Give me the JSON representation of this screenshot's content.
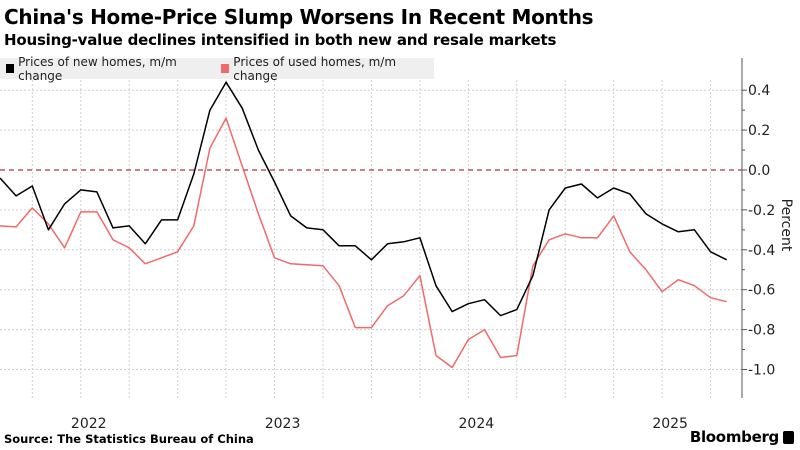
{
  "chart_data": {
    "type": "line",
    "title": "China's Home-Price Slump Worsens In Recent Months",
    "subtitle": "Housing-value declines intensified in both new and resale markets",
    "ylabel": "Percent",
    "ylim": [
      -1.15,
      0.58
    ],
    "yticks": [
      0.4,
      0.2,
      0.0,
      -0.2,
      -0.4,
      -0.6,
      -0.8,
      -1.0
    ],
    "ytick_labels": [
      "0.4",
      "0.2",
      "0.0",
      "-0.2",
      "-0.4",
      "-0.6",
      "-0.8",
      "-1.0"
    ],
    "xticks": [
      "2022",
      "2023",
      "2024",
      "2025"
    ],
    "x_start": "2021-08",
    "x_end": "2025-05",
    "grid": true,
    "reference_line": {
      "value": 0.0,
      "style": "dashed",
      "color": "#b03040"
    },
    "legend_placement": "top-left",
    "x": [
      "2021-08",
      "2021-09",
      "2021-10",
      "2021-11",
      "2021-12",
      "2022-01",
      "2022-02",
      "2022-03",
      "2022-04",
      "2022-05",
      "2022-06",
      "2022-07",
      "2022-08",
      "2022-09",
      "2022-10",
      "2022-11",
      "2022-12",
      "2023-01",
      "2023-02",
      "2023-03",
      "2023-04",
      "2023-05",
      "2023-06",
      "2023-07",
      "2023-08",
      "2023-09",
      "2023-10",
      "2023-11",
      "2023-12",
      "2024-01",
      "2024-02",
      "2024-03",
      "2024-04",
      "2024-05",
      "2024-06",
      "2024-07",
      "2024-08",
      "2024-09",
      "2024-10",
      "2024-11",
      "2024-12",
      "2025-01",
      "2025-02",
      "2025-03",
      "2025-04",
      "2025-05"
    ],
    "series": [
      {
        "name": "Prices of new homes, m/m change",
        "color": "#000000",
        "values": [
          -0.04,
          -0.13,
          -0.08,
          -0.3,
          -0.17,
          -0.1,
          -0.11,
          -0.29,
          -0.28,
          -0.37,
          -0.25,
          -0.25,
          -0.02,
          0.3,
          0.44,
          0.31,
          0.1,
          -0.06,
          -0.23,
          -0.29,
          -0.3,
          -0.38,
          -0.38,
          -0.45,
          -0.37,
          -0.36,
          -0.34,
          -0.58,
          -0.71,
          -0.67,
          -0.65,
          -0.73,
          -0.7,
          -0.53,
          -0.2,
          -0.09,
          -0.07,
          -0.14,
          -0.09,
          -0.12,
          -0.22,
          -0.27,
          -0.31,
          -0.3,
          -0.41,
          -0.45
        ]
      },
      {
        "name": "Prices of used homes, m/m change",
        "color": "#f06a6a",
        "values": [
          -0.28,
          -0.285,
          -0.19,
          -0.27,
          -0.39,
          -0.21,
          -0.21,
          -0.35,
          -0.39,
          -0.47,
          -0.44,
          -0.41,
          -0.28,
          0.11,
          0.26,
          0.02,
          -0.22,
          -0.44,
          -0.47,
          -0.475,
          -0.48,
          -0.58,
          -0.79,
          -0.79,
          -0.68,
          -0.63,
          -0.53,
          -0.93,
          -0.99,
          -0.85,
          -0.8,
          -0.94,
          -0.93,
          -0.48,
          -0.35,
          -0.32,
          -0.34,
          -0.34,
          -0.23,
          -0.41,
          -0.5,
          -0.61,
          -0.55,
          -0.58,
          -0.64,
          -0.66
        ]
      }
    ],
    "source": "Source: The Statistics Bureau of China",
    "brand": "Bloomberg"
  }
}
